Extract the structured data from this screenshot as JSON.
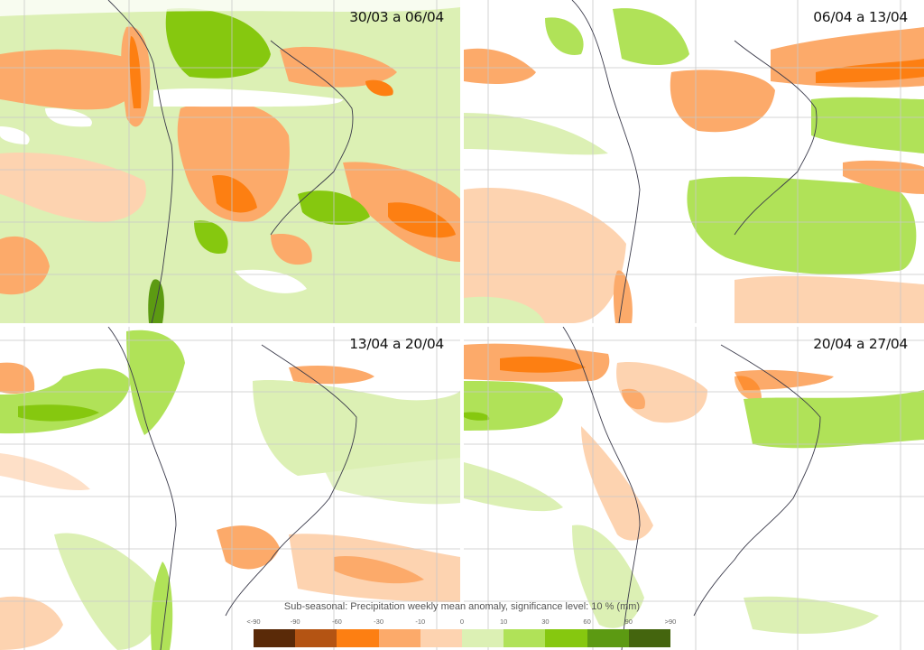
{
  "panels": [
    {
      "id": "week-1",
      "period": "30/03 a 06/04"
    },
    {
      "id": "week-2",
      "period": "06/04 a 13/04"
    },
    {
      "id": "week-3",
      "period": "13/04 a 20/04"
    },
    {
      "id": "week-4",
      "period": "20/04 a 27/04"
    }
  ],
  "legend": {
    "title": "Sub-seasonal: Precipitation weekly mean anomaly, significance level: 10 % (mm)",
    "ticks": [
      "<-90",
      "-90",
      "-60",
      "-30",
      "-10",
      "0",
      "10",
      "30",
      "60",
      "90",
      ">90"
    ],
    "colors": [
      "#5a2a08",
      "#b45413",
      "#fd7f12",
      "#fcaa6a",
      "#fdd3b0",
      "#dcf0b4",
      "#b0e258",
      "#86c80f",
      "#5c9a12",
      "#44650e"
    ]
  },
  "colors": {
    "dry_light": "#fdd3b0",
    "dry_mid": "#fcaa6a",
    "dry_strong": "#fd7f12",
    "wet_light": "#dcf0b4",
    "wet_mid": "#b0e258",
    "wet_strong": "#86c80f",
    "coast": "#3a3a4a",
    "grid": "#c8c8c8"
  }
}
